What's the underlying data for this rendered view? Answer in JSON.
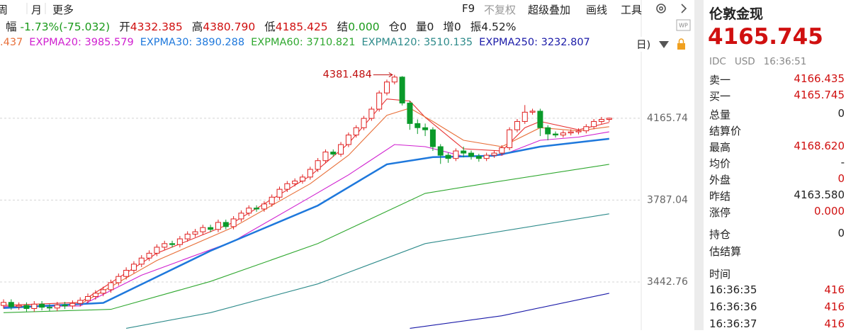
{
  "toolbar": {
    "left": [
      "周",
      "月",
      "更多"
    ],
    "right": [
      "F9",
      "不复权",
      "超级叠加",
      "画线",
      "工具"
    ]
  },
  "info_bar": {
    "change_label": "幅",
    "change": "-1.73%(-75.032)",
    "change_color": "#1a9a1a",
    "items": [
      {
        "label": "开",
        "value": "4332.385",
        "color": "#d01010"
      },
      {
        "label": "高",
        "value": "4380.790",
        "color": "#d01010"
      },
      {
        "label": "低",
        "value": "4185.425",
        "color": "#d01010"
      },
      {
        "label": "结",
        "value": "0.000",
        "color": "#1a9a1a"
      },
      {
        "label": "仓",
        "value": "0",
        "color": "#222222"
      },
      {
        "label": "量",
        "value": "0",
        "color": "#222222"
      },
      {
        "label": "增",
        "value": "0",
        "color": "#222222"
      },
      {
        "label": "振",
        "value": "4.52%",
        "color": "#222222"
      }
    ]
  },
  "legend_tail": "日)",
  "chart_data": {
    "type": "candlestick",
    "log_scale": true,
    "grid": true,
    "up_color": "#e02020",
    "down_color": "#0a9a2a",
    "ylim": [
      3255,
      4475
    ],
    "yticks": [
      3442.76,
      3787.04,
      4165.74
    ],
    "max_label": 4381.484,
    "open": [
      3350,
      3362,
      3345,
      3350,
      3338,
      3355,
      3343,
      3340,
      3352,
      3348,
      3358,
      3370,
      3385,
      3398,
      3412,
      3440,
      3465,
      3490,
      3515,
      3540,
      3560,
      3585,
      3600,
      3596,
      3620,
      3640,
      3650,
      3668,
      3660,
      3690,
      3672,
      3705,
      3730,
      3752,
      3748,
      3770,
      3800,
      3835,
      3860,
      3872,
      3890,
      3925,
      3965,
      4005,
      3995,
      4040,
      4085,
      4120,
      4165,
      4210,
      4290,
      4345,
      4370,
      4240,
      4140,
      4120,
      4110,
      4030,
      3990,
      3975,
      4010,
      4000,
      3985,
      3975,
      3990,
      4000,
      4025,
      4110,
      4150,
      4195,
      4200,
      4120,
      4090,
      4085,
      4095,
      4100,
      4105,
      4125,
      4150,
      4160
    ],
    "high": [
      3374,
      3374,
      3362,
      3362,
      3367,
      3367,
      3355,
      3364,
      3364,
      3370,
      3382,
      3397,
      3410,
      3424,
      3452,
      3477,
      3502,
      3527,
      3552,
      3572,
      3597,
      3612,
      3612,
      3632,
      3652,
      3662,
      3680,
      3680,
      3702,
      3702,
      3717,
      3742,
      3764,
      3764,
      3782,
      3812,
      3847,
      3872,
      3884,
      3902,
      3937,
      3977,
      4017,
      4017,
      4052,
      4097,
      4132,
      4177,
      4222,
      4302,
      4357,
      4381.484,
      4375,
      4252,
      4160,
      4140,
      4122,
      4042,
      4002,
      4022,
      4030,
      4012,
      3997,
      4002,
      4012,
      4037,
      4122,
      4162,
      4230,
      4212,
      4212,
      4132,
      4102,
      4107,
      4112,
      4117,
      4137,
      4162,
      4172,
      4168.62
    ],
    "low": [
      3338,
      3333,
      3333,
      3326,
      3326,
      3331,
      3328,
      3328,
      3336,
      3336,
      3346,
      3358,
      3373,
      3386,
      3400,
      3428,
      3453,
      3478,
      3503,
      3528,
      3548,
      3573,
      3584,
      3584,
      3608,
      3628,
      3638,
      3648,
      3648,
      3660,
      3660,
      3693,
      3718,
      3736,
      3736,
      3758,
      3788,
      3823,
      3848,
      3860,
      3878,
      3913,
      3953,
      3983,
      3983,
      4028,
      4073,
      4108,
      4153,
      4198,
      4278,
      4333,
      4228,
      4110,
      4090,
      4080,
      4010,
      3950,
      3955,
      3963,
      3980,
      3970,
      3960,
      3963,
      3978,
      3988,
      4013,
      4098,
      4138,
      4183,
      4080,
      4060,
      4073,
      4073,
      4083,
      4088,
      4093,
      4113,
      4138,
      4148
    ],
    "close": [
      3362,
      3345,
      3350,
      3338,
      3355,
      3343,
      3340,
      3352,
      3348,
      3358,
      3370,
      3385,
      3398,
      3412,
      3440,
      3465,
      3490,
      3515,
      3540,
      3560,
      3585,
      3600,
      3596,
      3620,
      3640,
      3650,
      3668,
      3660,
      3690,
      3672,
      3705,
      3730,
      3752,
      3748,
      3770,
      3800,
      3835,
      3860,
      3872,
      3890,
      3925,
      3965,
      4005,
      3995,
      4040,
      4085,
      4120,
      4165,
      4210,
      4290,
      4345,
      4370,
      4240,
      4140,
      4120,
      4110,
      4030,
      3990,
      3975,
      4010,
      4000,
      3985,
      3975,
      3990,
      4000,
      4025,
      4110,
      4150,
      4195,
      4200,
      4120,
      4090,
      4085,
      4095,
      4100,
      4105,
      4125,
      4150,
      4160,
      4165.745
    ],
    "series": [
      {
        "color": "#e83030",
        "x": [
          0,
          10,
          20,
          30,
          40,
          45,
          50,
          53,
          55,
          60,
          65,
          68,
          70,
          75,
          79
        ],
        "values": [
          3350,
          3362,
          3560,
          3690,
          3895,
          4045,
          4260,
          4250,
          4170,
          4020,
          4010,
          4120,
          4150,
          4110,
          4145
        ]
      },
      {
        "name": ".437",
        "color": "#e8703a",
        "x": [
          0,
          10,
          20,
          30,
          40,
          45,
          50,
          53,
          56,
          60,
          65,
          70,
          75,
          79
        ],
        "values": [
          3345,
          3355,
          3530,
          3670,
          3860,
          3990,
          4180,
          4215,
          4150,
          4060,
          4030,
          4120,
          4105,
          4125
        ]
      },
      {
        "name": "EXPMA20: 3985.579",
        "color": "#d020d0",
        "x": [
          0,
          10,
          18,
          30,
          40,
          45,
          51,
          55,
          60,
          65,
          70,
          75,
          79
        ],
        "values": [
          3345,
          3348,
          3470,
          3610,
          3800,
          3900,
          4040,
          4030,
          3985,
          3990,
          4060,
          4075,
          4100
        ]
      },
      {
        "name": "EXPMA30: 3890.288",
        "color": "#1e78dc",
        "width": 2.5,
        "x": [
          0,
          13,
          27,
          41,
          50,
          56,
          64,
          70,
          79
        ],
        "values": [
          3340,
          3360,
          3570,
          3763,
          3948,
          3981,
          3988,
          4030,
          4067
        ]
      },
      {
        "name": "EXPMA60: 3710.821",
        "color": "#30a830",
        "x": [
          0,
          14,
          27,
          41,
          55,
          64,
          79
        ],
        "values": [
          3322,
          3335,
          3445,
          3600,
          3817,
          3867,
          3948
        ]
      },
      {
        "name": "EXPMA120: 3510.135",
        "color": "#2e8b8b",
        "x": [
          16,
          27,
          41,
          55,
          79
        ],
        "values": [
          3262,
          3322,
          3435,
          3600,
          3727
        ]
      },
      {
        "name": "EXPMA250: 3232.807",
        "color": "#1a1aa8",
        "x": [
          53,
          65,
          79
        ],
        "values": [
          3262,
          3310,
          3398
        ]
      }
    ]
  },
  "quote_panel": {
    "title": "伦敦金现",
    "price": "4165.745",
    "meta": [
      "IDC",
      "USD",
      "16:36:51"
    ],
    "bid_ask": [
      {
        "label": "卖一",
        "value": "4166.435",
        "color": "#d01010"
      },
      {
        "label": "买一",
        "value": "4165.745",
        "color": "#d01010"
      }
    ],
    "stats": [
      {
        "label": "总量",
        "value": "0",
        "color": "#222222"
      },
      {
        "label": "结算价"
      },
      {
        "label": "最高",
        "value": "4168.620",
        "color": "#d01010"
      },
      {
        "label": "均价",
        "value": "-",
        "color": "#222222"
      },
      {
        "label": "外盘",
        "value": "0",
        "color": "#d01010"
      },
      {
        "label": "昨结",
        "value": "4163.580",
        "color": "#222222"
      },
      {
        "label": "涨停",
        "value": "0.000",
        "color": "#d01010"
      }
    ],
    "position": [
      {
        "label": "持仓",
        "value": "0",
        "color": "#222222"
      },
      {
        "label": "估结算"
      }
    ],
    "time_header": "时间",
    "trades": [
      {
        "time": "16:36:35",
        "price": "416"
      },
      {
        "time": "16:36:36",
        "price": "416"
      },
      {
        "time": "16:36:37",
        "price": "416"
      }
    ]
  }
}
